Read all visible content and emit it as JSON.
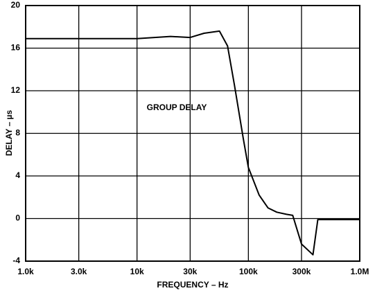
{
  "chart_data": {
    "type": "line",
    "annotation": "GROUP DELAY",
    "xlabel": "FREQUENCY – Hz",
    "ylabel": "DELAY – µs",
    "x": [
      1000,
      10000,
      20000,
      30000,
      40000,
      55000,
      65000,
      75000,
      90000,
      100000,
      125000,
      150000,
      180000,
      220000,
      250000,
      300000,
      380000,
      420000,
      1000000
    ],
    "values": [
      16.9,
      16.9,
      17.1,
      17.0,
      17.4,
      17.6,
      16.2,
      12.5,
      7.5,
      4.8,
      2.2,
      1.0,
      0.6,
      0.4,
      0.3,
      -2.4,
      -3.4,
      -0.1,
      -0.1
    ],
    "color": "#000000",
    "xscale": "log",
    "xlim": [
      1000,
      1000000
    ],
    "xticks": [
      {
        "value": 1000,
        "label": "1.0k"
      },
      {
        "value": 3000,
        "label": "3.0k"
      },
      {
        "value": 10000,
        "label": "10k"
      },
      {
        "value": 30000,
        "label": "30k"
      },
      {
        "value": 100000,
        "label": "100k"
      },
      {
        "value": 300000,
        "label": "300k"
      },
      {
        "value": 1000000,
        "label": "1.0M"
      }
    ],
    "ylim": [
      -4,
      20
    ],
    "yticks": [
      -4,
      0,
      4,
      8,
      12,
      16,
      20
    ],
    "grid": true
  }
}
